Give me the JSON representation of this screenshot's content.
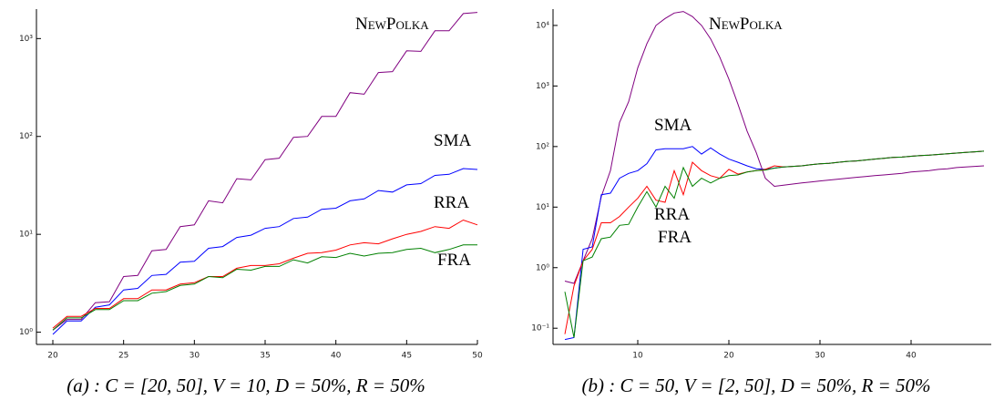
{
  "chart_data": [
    {
      "type": "line",
      "caption": "(a) : C = [20, 50], V = 10, D = 50%, R = 50%",
      "log_y": true,
      "x": [
        20,
        21,
        22,
        23,
        24,
        25,
        26,
        27,
        28,
        29,
        30,
        31,
        32,
        33,
        34,
        35,
        36,
        37,
        38,
        39,
        40,
        41,
        42,
        43,
        44,
        45,
        46,
        47,
        48,
        49,
        50
      ],
      "xlim": [
        20,
        50
      ],
      "xticks": [
        20,
        25,
        30,
        35,
        40,
        45,
        50
      ],
      "ylim": [
        0.75,
        2000
      ],
      "yticks": [
        {
          "value": 1,
          "label": "10⁰"
        },
        {
          "value": 10,
          "label": "10¹"
        },
        {
          "value": 100,
          "label": "10²"
        },
        {
          "value": 1000,
          "label": "10³"
        }
      ],
      "series": [
        {
          "name": "NewPolka",
          "color": "#800080",
          "values": [
            1.05,
            1.35,
            1.35,
            2.0,
            2.05,
            3.7,
            3.8,
            6.8,
            7,
            12,
            12.5,
            22,
            21,
            37,
            36,
            58,
            60,
            98,
            100,
            160,
            160,
            280,
            270,
            450,
            460,
            750,
            740,
            1200,
            1200,
            1800,
            1850
          ]
        },
        {
          "name": "SMA",
          "color": "#0000ff",
          "values": [
            0.95,
            1.3,
            1.3,
            1.8,
            1.9,
            2.7,
            2.8,
            3.8,
            3.9,
            5.2,
            5.3,
            7.2,
            7.5,
            9.3,
            9.8,
            11.5,
            12,
            14.5,
            15,
            18,
            18.5,
            22,
            23,
            28,
            27,
            32,
            33,
            40,
            41,
            47,
            46
          ]
        },
        {
          "name": "RRA",
          "color": "#ff0000",
          "values": [
            1.1,
            1.45,
            1.45,
            1.75,
            1.75,
            2.2,
            2.2,
            2.7,
            2.7,
            3.1,
            3.2,
            3.7,
            3.7,
            4.5,
            4.8,
            4.8,
            5,
            5.7,
            6.4,
            6.5,
            6.9,
            7.8,
            8.2,
            8,
            9,
            10,
            10.7,
            12,
            11.5,
            14,
            12.5
          ]
        },
        {
          "name": "FRA",
          "color": "#008000",
          "values": [
            1.05,
            1.4,
            1.4,
            1.7,
            1.7,
            2.1,
            2.1,
            2.5,
            2.6,
            3.0,
            3.1,
            3.7,
            3.6,
            4.4,
            4.3,
            4.7,
            4.7,
            5.5,
            5.1,
            5.9,
            5.8,
            6.4,
            6.0,
            6.4,
            6.5,
            7.0,
            7.2,
            6.5,
            7.0,
            7.8,
            7.8
          ]
        }
      ]
    },
    {
      "type": "line",
      "caption": "(b) : C = 50, V = [2, 50], D = 50%, R = 50%",
      "log_y": true,
      "x": [
        2,
        3,
        4,
        5,
        6,
        7,
        8,
        9,
        10,
        11,
        12,
        13,
        14,
        15,
        16,
        17,
        18,
        19,
        20,
        21,
        22,
        23,
        24,
        25,
        26,
        27,
        28,
        29,
        30,
        31,
        32,
        33,
        34,
        35,
        36,
        37,
        38,
        39,
        40,
        41,
        42,
        43,
        44,
        45,
        46,
        47,
        48
      ],
      "xlim": [
        0.7,
        48.8
      ],
      "xticks": [
        10,
        20,
        30,
        40
      ],
      "ylim": [
        0.054,
        18600
      ],
      "yticks": [
        {
          "value": 0.1,
          "label": "10⁻¹"
        },
        {
          "value": 1,
          "label": "10⁰"
        },
        {
          "value": 10,
          "label": "10¹"
        },
        {
          "value": 100,
          "label": "10²"
        },
        {
          "value": 1000,
          "label": "10³"
        },
        {
          "value": 10000,
          "label": "10⁴"
        }
      ],
      "series": [
        {
          "name": "NewPolka",
          "color": "#800080",
          "values": [
            0.6,
            0.55,
            1.3,
            3,
            15,
            40,
            250,
            550,
            2000,
            5000,
            10000,
            13000,
            16000,
            17000,
            14000,
            10000,
            6000,
            3000,
            1300,
            500,
            180,
            80,
            30,
            22,
            23,
            24,
            25,
            26,
            27,
            28,
            29,
            30,
            31,
            32,
            33,
            34,
            35,
            36,
            38,
            39,
            40,
            42,
            43,
            45,
            46,
            47,
            48
          ]
        },
        {
          "name": "SMA",
          "color": "#0000ff",
          "values": [
            0.065,
            0.07,
            2,
            2.2,
            16,
            17,
            30,
            36,
            40,
            52,
            88,
            92,
            92,
            92,
            100,
            75,
            95,
            75,
            62,
            55,
            48,
            43,
            42,
            44,
            46,
            47,
            48,
            50,
            52,
            53,
            55,
            57,
            58,
            60,
            62,
            64,
            66,
            67,
            69,
            71,
            72,
            74,
            76,
            78,
            80,
            82,
            84
          ]
        },
        {
          "name": "RRA",
          "color": "#ff0000",
          "values": [
            0.08,
            0.5,
            1.3,
            2,
            5.5,
            5.5,
            7,
            10,
            14,
            22,
            13,
            12,
            40,
            16,
            55,
            40,
            33,
            30,
            42,
            35,
            38,
            40,
            42,
            48,
            46,
            47,
            48,
            50,
            52,
            53,
            55,
            57,
            58,
            60,
            62,
            64,
            66,
            67,
            69,
            71,
            72,
            74,
            76,
            78,
            80,
            82,
            84
          ]
        },
        {
          "name": "FRA",
          "color": "#008000",
          "values": [
            0.4,
            0.07,
            1.3,
            1.5,
            3,
            3.2,
            5,
            5.2,
            10,
            18,
            10,
            22,
            14,
            45,
            22,
            30,
            25,
            30,
            33,
            34,
            38,
            40,
            41,
            44,
            46,
            47,
            48,
            50,
            52,
            53,
            55,
            57,
            58,
            60,
            62,
            64,
            66,
            67,
            69,
            71,
            72,
            74,
            76,
            78,
            80,
            82,
            84
          ]
        }
      ]
    }
  ]
}
